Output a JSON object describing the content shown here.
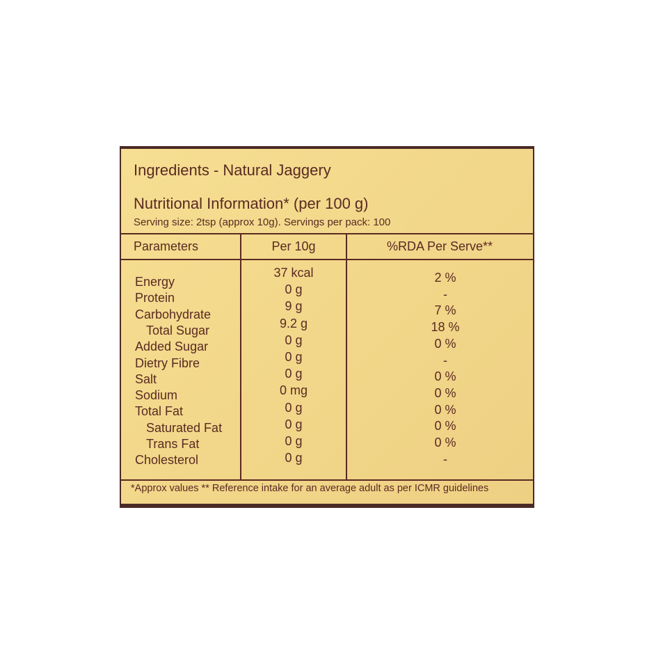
{
  "ingredients": "Ingredients - Natural Jaggery",
  "nutrition_title": "Nutritional Information* (per 100 g)",
  "serving_info": "Serving size: 2tsp (approx 10g). Servings per pack: 100",
  "table": {
    "headers": [
      "Parameters",
      "Per 10g",
      "%RDA Per Serve**"
    ],
    "rows": [
      {
        "name": "Energy",
        "per10g": "37 kcal",
        "rda": "2 %",
        "indent": false
      },
      {
        "name": "Protein",
        "per10g": "0 g",
        "rda": "-",
        "indent": false
      },
      {
        "name": "Carbohydrate",
        "per10g": "9 g",
        "rda": "7 %",
        "indent": false
      },
      {
        "name": "Total Sugar",
        "per10g": "9.2 g",
        "rda": "18 %",
        "indent": true
      },
      {
        "name": "Added Sugar",
        "per10g": "0 g",
        "rda": "0 %",
        "indent": false
      },
      {
        "name": "Dietry Fibre",
        "per10g": "0 g",
        "rda": "-",
        "indent": false
      },
      {
        "name": "Salt",
        "per10g": "0 g",
        "rda": "0 %",
        "indent": false
      },
      {
        "name": "Sodium",
        "per10g": "0 mg",
        "rda": "0 %",
        "indent": false
      },
      {
        "name": "Total Fat",
        "per10g": "0 g",
        "rda": "0 %",
        "indent": false
      },
      {
        "name": "Saturated Fat",
        "per10g": "0 g",
        "rda": "0 %",
        "indent": true
      },
      {
        "name": "Trans Fat",
        "per10g": "0 g",
        "rda": "0 %",
        "indent": true
      },
      {
        "name": "Cholesterol",
        "per10g": "0 g",
        "rda": "-",
        "indent": false
      }
    ]
  },
  "footnote": "*Approx values ** Reference intake for an average adult as per ICMR guidelines",
  "colors": {
    "label": "#f2d78a",
    "ink": "#5a2a22",
    "packaging": "#4a2a25"
  }
}
